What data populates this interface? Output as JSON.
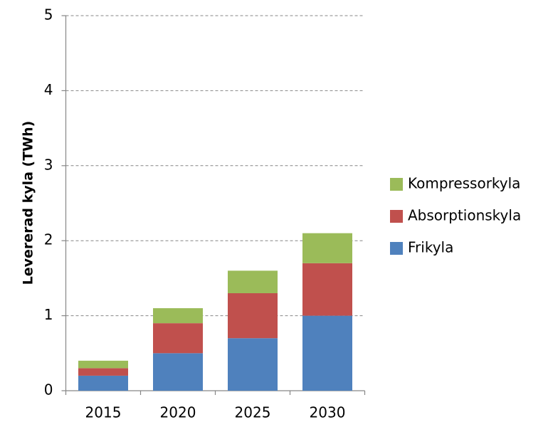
{
  "chart_data": {
    "type": "stacked-bar",
    "y_label": "Levererad kyla (TWh)",
    "categories": [
      "2015",
      "2020",
      "2025",
      "2030"
    ],
    "series": [
      {
        "name": "Frikyla",
        "color": "#4f81bd",
        "values": [
          0.2,
          0.5,
          0.7,
          1.0
        ]
      },
      {
        "name": "Absorptionskyla",
        "color": "#c0504d",
        "values": [
          0.1,
          0.4,
          0.6,
          0.7
        ]
      },
      {
        "name": "Kompressorkyla",
        "color": "#9bbb59",
        "values": [
          0.1,
          0.2,
          0.3,
          0.4
        ]
      }
    ],
    "ylim": [
      0,
      5
    ],
    "yticks": [
      0,
      1,
      2,
      3,
      4,
      5
    ],
    "grid": true,
    "legend": "right"
  }
}
